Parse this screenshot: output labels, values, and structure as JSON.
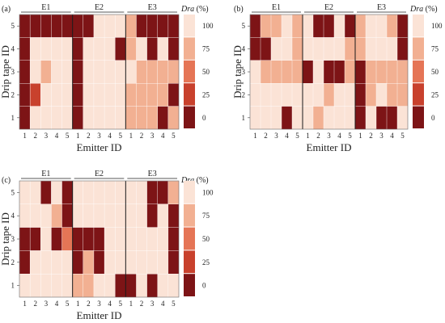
{
  "chart_data": {
    "type": "heatmap",
    "xlabel": "Emitter ID",
    "ylabel": "Drip tape ID",
    "x_tick_labels": [
      "1",
      "2",
      "3",
      "4",
      "5"
    ],
    "y_tick_labels": [
      "1",
      "2",
      "3",
      "4",
      "5"
    ],
    "groups": [
      "E1",
      "E2",
      "E3"
    ],
    "legend": {
      "title_italic": "Dra",
      "title_unit": " (%)",
      "levels": [
        100,
        75,
        50,
        25,
        0
      ],
      "colors": [
        "#fbe3d6",
        "#f2b092",
        "#e57556",
        "#c8412d",
        "#7d1416"
      ]
    },
    "panels": [
      {
        "label": "(a)",
        "rows_top_to_bottom": [
          [
            0,
            0,
            0,
            0,
            0,
            0,
            0,
            100,
            100,
            100,
            75,
            0,
            0,
            0,
            0
          ],
          [
            0,
            100,
            100,
            100,
            100,
            0,
            100,
            100,
            100,
            0,
            75,
            100,
            0,
            100,
            0
          ],
          [
            0,
            100,
            75,
            100,
            100,
            0,
            100,
            100,
            100,
            100,
            100,
            75,
            75,
            75,
            75
          ],
          [
            0,
            25,
            100,
            100,
            100,
            0,
            100,
            100,
            100,
            100,
            75,
            75,
            75,
            75,
            0
          ],
          [
            0,
            100,
            100,
            100,
            100,
            0,
            100,
            100,
            100,
            100,
            75,
            75,
            75,
            0,
            75
          ]
        ]
      },
      {
        "label": "(b)",
        "rows_top_to_bottom": [
          [
            0,
            75,
            75,
            100,
            75,
            100,
            0,
            0,
            100,
            0,
            75,
            100,
            100,
            75,
            0
          ],
          [
            0,
            0,
            100,
            100,
            75,
            100,
            100,
            100,
            100,
            75,
            75,
            100,
            100,
            100,
            0
          ],
          [
            100,
            75,
            75,
            75,
            75,
            0,
            100,
            0,
            0,
            75,
            0,
            75,
            75,
            75,
            75
          ],
          [
            100,
            100,
            100,
            100,
            100,
            100,
            100,
            75,
            100,
            100,
            0,
            75,
            100,
            75,
            75
          ],
          [
            100,
            100,
            100,
            0,
            100,
            100,
            75,
            100,
            100,
            100,
            0,
            100,
            0,
            0,
            100
          ]
        ]
      },
      {
        "label": "(c)",
        "rows_top_to_bottom": [
          [
            100,
            100,
            0,
            100,
            0,
            100,
            100,
            100,
            100,
            100,
            100,
            100,
            0,
            0,
            75
          ],
          [
            100,
            100,
            100,
            75,
            0,
            100,
            100,
            100,
            100,
            100,
            100,
            100,
            0,
            100,
            0
          ],
          [
            0,
            0,
            100,
            0,
            50,
            0,
            0,
            0,
            100,
            100,
            100,
            100,
            100,
            100,
            0
          ],
          [
            0,
            100,
            100,
            100,
            100,
            0,
            75,
            0,
            100,
            100,
            100,
            100,
            100,
            100,
            0
          ],
          [
            100,
            100,
            100,
            100,
            100,
            75,
            75,
            100,
            100,
            0,
            0,
            100,
            0,
            100,
            100
          ]
        ]
      }
    ]
  }
}
